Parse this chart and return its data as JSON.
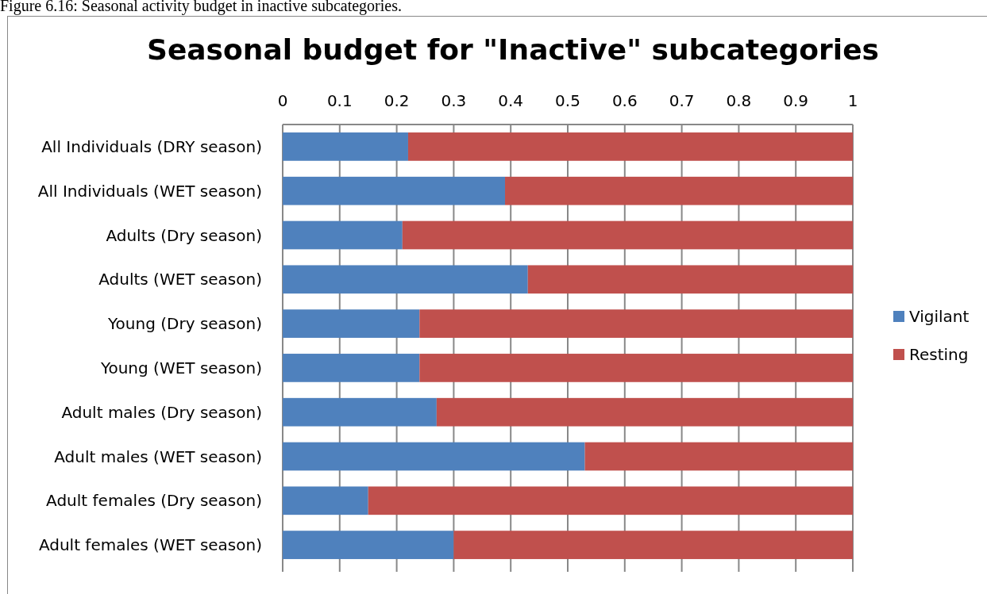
{
  "chart_data": {
    "type": "bar",
    "orientation": "horizontal",
    "stacked": true,
    "title": "Seasonal budget for \"Inactive\" subcategories",
    "annotations": [
      "Figure 6.16: Seasonal activity budget in inactive subcategories."
    ],
    "categories": [
      "All Individuals (DRY season)",
      "All Individuals (WET season)",
      "Adults (Dry season)",
      "Adults (WET season)",
      "Young (Dry season)",
      "Young (WET season)",
      "Adult males (Dry season)",
      "Adult males (WET season)",
      "Adult females (Dry season)",
      "Adult females (WET season)"
    ],
    "series": [
      {
        "name": "Vigilant",
        "color": "#4f81bd",
        "values": [
          0.22,
          0.39,
          0.21,
          0.43,
          0.24,
          0.24,
          0.27,
          0.53,
          0.15,
          0.3
        ]
      },
      {
        "name": "Resting",
        "color": "#c0504d",
        "values": [
          0.78,
          0.61,
          0.79,
          0.57,
          0.76,
          0.76,
          0.73,
          0.47,
          0.85,
          0.7
        ]
      }
    ],
    "xlim": [
      0,
      1
    ],
    "xticks": [
      0,
      0.1,
      0.2,
      0.3,
      0.4,
      0.5,
      0.6,
      0.7,
      0.8,
      0.9,
      1
    ],
    "grid": "x",
    "legend": "right"
  }
}
